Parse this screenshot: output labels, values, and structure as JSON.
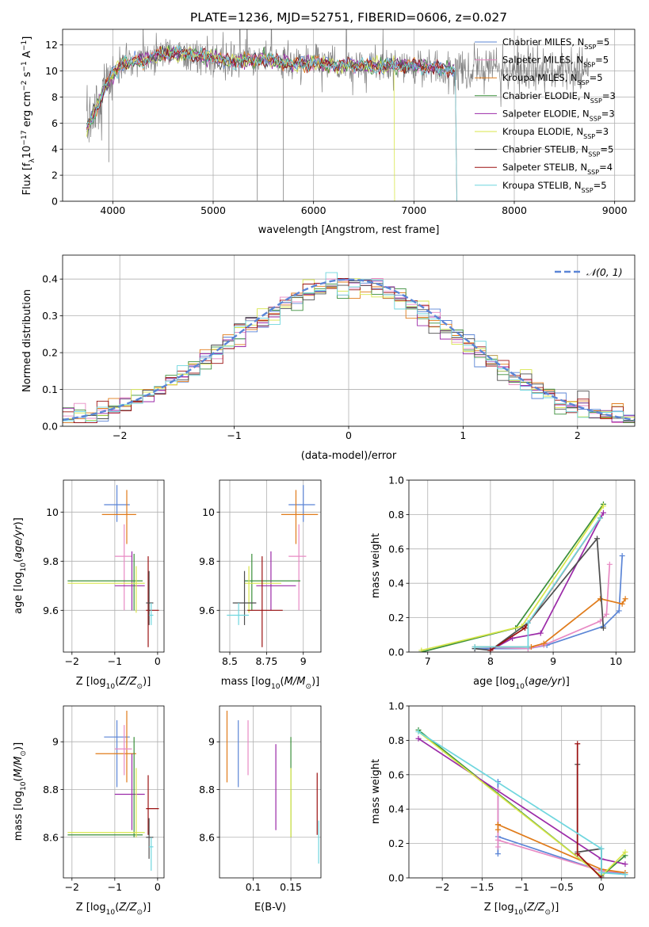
{
  "colors": {
    "chabrier_miles": "#5b85d6",
    "salpeter_miles": "#e88ac4",
    "kroupa_miles": "#e07b1a",
    "chabrier_elodie": "#3b8f3b",
    "salpeter_elodie": "#9b2aa8",
    "kroupa_elodie": "#d8e64a",
    "chabrier_stelib": "#4d4d4d",
    "salpeter_stelib": "#9b1111",
    "kroupa_stelib": "#6fd6de",
    "data": "#808080"
  },
  "chart_data": [
    {
      "id": "spectrum",
      "type": "line",
      "title": "PLATE=1236, MJD=52751, FIBERID=0606, z=0.027",
      "xlabel": "wavelength [Angstrom, rest frame]",
      "ylabel": "Flux [fλ10⁻¹⁷ erg cm⁻² s⁻¹ A⁻¹]",
      "xlim": [
        3500,
        9200
      ],
      "ylim": [
        0,
        13.2
      ],
      "xticks": [
        4000,
        5000,
        6000,
        7000,
        8000,
        9000
      ],
      "yticks": [
        0,
        2,
        4,
        6,
        8,
        10,
        12
      ],
      "legend": [
        "Chabrier MILES, N_SSP=5",
        "Salpeter MILES, N_SSP=5",
        "Kroupa MILES, N_SSP=5",
        "Chabrier ELODIE, N_SSP=3",
        "Salpeter ELODIE, N_SSP=3",
        "Kroupa ELODIE, N_SSP=3",
        "Chabrier STELIB, N_SSP=5",
        "Salpeter STELIB, N_SSP=4",
        "Kroupa STELIB, N_SSP=5"
      ],
      "legend_position": "upper right",
      "continuum": [
        [
          3740,
          5.5
        ],
        [
          3800,
          6.5
        ],
        [
          3900,
          8.3
        ],
        [
          3980,
          9.6
        ],
        [
          4100,
          10.6
        ],
        [
          4300,
          10.8
        ],
        [
          4500,
          11.3
        ],
        [
          4800,
          11.3
        ],
        [
          5000,
          11.0
        ],
        [
          5200,
          10.7
        ],
        [
          5500,
          10.9
        ],
        [
          5800,
          10.5
        ],
        [
          6000,
          10.6
        ],
        [
          6300,
          10.4
        ],
        [
          6600,
          10.4
        ],
        [
          7000,
          10.4
        ],
        [
          7300,
          10.2
        ],
        [
          7400,
          10.1
        ]
      ],
      "model_cutoffs": {
        "kroupa_elodie": 6800,
        "salpeter_stelib": 7420,
        "kroupa_stelib": 7420
      },
      "data_extent": [
        3740,
        8750
      ]
    },
    {
      "id": "residuals",
      "type": "histogram",
      "xlabel": "(data-model)/error",
      "ylabel": "Normed distribution",
      "xlim": [
        -2.5,
        2.5
      ],
      "ylim": [
        0,
        0.465
      ],
      "xticks": [
        -2,
        -1,
        0,
        1,
        2
      ],
      "yticks": [
        0.0,
        0.1,
        0.2,
        0.3,
        0.4
      ],
      "bin_width": 0.1,
      "reference_curve": "N(0,1)",
      "legend": [
        "𝒩(0, 1)"
      ],
      "legend_position": "upper right"
    },
    {
      "id": "age_vs_Z",
      "type": "errorbar",
      "xlabel": "Z [log10(Z/Z⊙)]",
      "ylabel": "age  [log10(age/yr)]",
      "xlim": [
        -2.2,
        0.15
      ],
      "ylim": [
        9.43,
        10.13
      ],
      "xticks": [
        -2,
        -1,
        0
      ],
      "yticks": [
        9.6,
        9.8,
        10.0
      ],
      "points": [
        {
          "m": "chabrier_miles",
          "x": -0.95,
          "xl": -1.25,
          "xh": -0.65,
          "y": 10.03,
          "yl": 9.96,
          "yh": 10.11
        },
        {
          "m": "kroupa_miles",
          "x": -0.72,
          "xl": -1.3,
          "xh": -0.5,
          "y": 9.99,
          "yl": 9.87,
          "yh": 10.09
        },
        {
          "m": "salpeter_miles",
          "x": -0.78,
          "xl": -1.0,
          "xh": -0.6,
          "y": 9.82,
          "yl": 9.6,
          "yh": 9.95
        },
        {
          "m": "salpeter_elodie",
          "x": -0.6,
          "xl": -1.0,
          "xh": -0.3,
          "y": 9.7,
          "yl": 9.6,
          "yh": 9.84
        },
        {
          "m": "chabrier_elodie",
          "x": -0.55,
          "xl": -2.1,
          "xh": -0.35,
          "y": 9.72,
          "yl": 9.6,
          "yh": 9.83
        },
        {
          "m": "kroupa_elodie",
          "x": -0.5,
          "xl": -2.1,
          "xh": -0.3,
          "y": 9.71,
          "yl": 9.59,
          "yh": 9.78
        },
        {
          "m": "salpeter_stelib",
          "x": -0.22,
          "xl": -0.27,
          "xh": 0.03,
          "y": 9.6,
          "yl": 9.45,
          "yh": 9.82
        },
        {
          "m": "chabrier_stelib",
          "x": -0.2,
          "xl": -0.27,
          "xh": -0.1,
          "y": 9.63,
          "yl": 9.54,
          "yh": 9.76
        },
        {
          "m": "kroupa_stelib",
          "x": -0.15,
          "xl": -0.2,
          "xh": -0.1,
          "y": 9.58,
          "yl": 9.54,
          "yh": 9.63
        }
      ]
    },
    {
      "id": "age_vs_mass",
      "type": "errorbar",
      "xlabel": "mass [log10(M/M⊙)]",
      "ylabel": "",
      "xlim": [
        8.43,
        9.12
      ],
      "ylim": [
        9.43,
        10.13
      ],
      "xticks": [
        8.5,
        8.75,
        9.0
      ],
      "yticks": [
        9.6,
        9.8,
        10.0
      ],
      "points": [
        {
          "m": "chabrier_miles",
          "x": 9.0,
          "xl": 8.9,
          "xh": 9.08,
          "y": 10.03,
          "yl": 9.96,
          "yh": 10.11
        },
        {
          "m": "kroupa_miles",
          "x": 8.95,
          "xl": 8.85,
          "xh": 9.1,
          "y": 9.99,
          "yl": 9.87,
          "yh": 10.09
        },
        {
          "m": "salpeter_miles",
          "x": 8.97,
          "xl": 8.9,
          "xh": 9.02,
          "y": 9.82,
          "yl": 9.6,
          "yh": 9.95
        },
        {
          "m": "salpeter_elodie",
          "x": 8.78,
          "xl": 8.68,
          "xh": 8.95,
          "y": 9.7,
          "yl": 9.6,
          "yh": 9.84
        },
        {
          "m": "chabrier_elodie",
          "x": 8.65,
          "xl": 8.6,
          "xh": 8.98,
          "y": 9.72,
          "yl": 9.6,
          "yh": 9.83
        },
        {
          "m": "kroupa_elodie",
          "x": 8.63,
          "xl": 8.6,
          "xh": 8.85,
          "y": 9.71,
          "yl": 9.59,
          "yh": 9.78
        },
        {
          "m": "salpeter_stelib",
          "x": 8.72,
          "xl": 8.62,
          "xh": 8.86,
          "y": 9.6,
          "yl": 9.45,
          "yh": 9.82
        },
        {
          "m": "chabrier_stelib",
          "x": 8.6,
          "xl": 8.52,
          "xh": 8.68,
          "y": 9.63,
          "yl": 9.54,
          "yh": 9.76
        },
        {
          "m": "kroupa_stelib",
          "x": 8.56,
          "xl": 8.48,
          "xh": 8.63,
          "y": 9.58,
          "yl": 9.54,
          "yh": 9.63
        }
      ]
    },
    {
      "id": "weight_vs_age",
      "type": "line",
      "xlabel": "age  [log10(age/yr)]",
      "ylabel": "mass weight",
      "xlim": [
        6.7,
        10.3
      ],
      "ylim": [
        0,
        1.0
      ],
      "xticks": [
        7,
        8,
        9,
        10
      ],
      "yticks": [
        0.0,
        0.2,
        0.4,
        0.6,
        0.8,
        1.0
      ],
      "series": [
        {
          "m": "chabrier_miles",
          "points": [
            [
              7.75,
              0.02
            ],
            [
              8.6,
              0.02
            ],
            [
              8.9,
              0.04
            ],
            [
              9.8,
              0.15
            ],
            [
              10.05,
              0.24
            ],
            [
              10.1,
              0.56
            ]
          ]
        },
        {
          "m": "salpeter_miles",
          "points": [
            [
              7.75,
              0.03
            ],
            [
              8.6,
              0.02
            ],
            [
              8.85,
              0.04
            ],
            [
              9.75,
              0.18
            ],
            [
              9.85,
              0.22
            ],
            [
              9.9,
              0.51
            ]
          ]
        },
        {
          "m": "kroupa_miles",
          "points": [
            [
              7.75,
              0.03
            ],
            [
              8.65,
              0.03
            ],
            [
              8.85,
              0.05
            ],
            [
              9.75,
              0.31
            ],
            [
              10.1,
              0.28
            ],
            [
              10.15,
              0.31
            ]
          ]
        },
        {
          "m": "chabrier_elodie",
          "points": [
            [
              6.9,
              0.0
            ],
            [
              8.4,
              0.14
            ],
            [
              9.8,
              0.86
            ]
          ]
        },
        {
          "m": "salpeter_elodie",
          "points": [
            [
              8.0,
              0.01
            ],
            [
              8.35,
              0.08
            ],
            [
              8.8,
              0.11
            ],
            [
              9.8,
              0.81
            ]
          ]
        },
        {
          "m": "kroupa_elodie",
          "points": [
            [
              6.9,
              0.01
            ],
            [
              8.5,
              0.15
            ],
            [
              9.8,
              0.85
            ]
          ]
        },
        {
          "m": "chabrier_stelib",
          "points": [
            [
              7.75,
              0.02
            ],
            [
              8.0,
              0.01
            ],
            [
              8.6,
              0.17
            ],
            [
              9.7,
              0.66
            ],
            [
              9.8,
              0.14
            ]
          ]
        },
        {
          "m": "salpeter_stelib",
          "points": [
            [
              8.0,
              0.01
            ],
            [
              8.55,
              0.14
            ],
            [
              9.75,
              0.78
            ]
          ]
        },
        {
          "m": "kroupa_stelib",
          "points": [
            [
              7.75,
              0.03
            ],
            [
              8.6,
              0.03
            ],
            [
              8.6,
              0.17
            ],
            [
              9.75,
              0.78
            ]
          ]
        }
      ]
    },
    {
      "id": "mass_vs_Z",
      "type": "errorbar",
      "xlabel": "Z [log10(Z/Z⊙)]",
      "ylabel": "mass [log10(M/M⊙)]",
      "xlim": [
        -2.2,
        0.15
      ],
      "ylim": [
        8.43,
        9.15
      ],
      "xticks": [
        -2,
        -1,
        0
      ],
      "yticks": [
        8.6,
        8.8,
        9.0
      ],
      "points": [
        {
          "m": "chabrier_miles",
          "x": -0.95,
          "xl": -1.25,
          "xh": -0.65,
          "y": 9.02,
          "yl": 8.81,
          "yh": 9.09
        },
        {
          "m": "kroupa_miles",
          "x": -0.72,
          "xl": -1.45,
          "xh": -0.5,
          "y": 8.95,
          "yl": 8.83,
          "yh": 9.13
        },
        {
          "m": "salpeter_miles",
          "x": -0.78,
          "xl": -1.0,
          "xh": -0.6,
          "y": 8.97,
          "yl": 8.86,
          "yh": 9.07
        },
        {
          "m": "salpeter_elodie",
          "x": -0.6,
          "xl": -1.0,
          "xh": -0.3,
          "y": 8.78,
          "yl": 8.63,
          "yh": 8.95
        },
        {
          "m": "chabrier_elodie",
          "x": -0.55,
          "xl": -2.1,
          "xh": -0.35,
          "y": 8.61,
          "yl": 8.6,
          "yh": 9.02
        },
        {
          "m": "kroupa_elodie",
          "x": -0.5,
          "xl": -2.1,
          "xh": -0.3,
          "y": 8.62,
          "yl": 8.6,
          "yh": 8.89
        },
        {
          "m": "salpeter_stelib",
          "x": -0.22,
          "xl": -0.27,
          "xh": 0.03,
          "y": 8.72,
          "yl": 8.61,
          "yh": 8.86
        },
        {
          "m": "chabrier_stelib",
          "x": -0.2,
          "xl": -0.27,
          "xh": -0.1,
          "y": 8.6,
          "yl": 8.51,
          "yh": 8.68
        },
        {
          "m": "kroupa_stelib",
          "x": -0.15,
          "xl": -0.2,
          "xh": -0.1,
          "y": 8.56,
          "yl": 8.46,
          "yh": 8.6
        }
      ]
    },
    {
      "id": "mass_vs_ebv",
      "type": "errorbar",
      "xlabel": "E(B-V)",
      "ylabel": "",
      "xlim": [
        0.055,
        0.19
      ],
      "ylim": [
        8.43,
        9.15
      ],
      "xticks": [
        0.1,
        0.15
      ],
      "yticks": [
        8.6,
        8.8,
        9.0
      ],
      "points": [
        {
          "m": "kroupa_miles",
          "x": 0.065,
          "y": 8.95,
          "yl": 8.83,
          "yh": 9.13
        },
        {
          "m": "chabrier_miles",
          "x": 0.08,
          "y": 9.02,
          "yl": 8.81,
          "yh": 9.09
        },
        {
          "m": "salpeter_miles",
          "x": 0.093,
          "y": 8.97,
          "yl": 8.86,
          "yh": 9.09
        },
        {
          "m": "salpeter_elodie",
          "x": 0.13,
          "y": 8.78,
          "yl": 8.63,
          "yh": 8.99
        },
        {
          "m": "chabrier_elodie",
          "x": 0.15,
          "y": 8.61,
          "yl": 8.6,
          "yh": 9.02
        },
        {
          "m": "kroupa_elodie",
          "x": 0.15,
          "y": 8.62,
          "yl": 8.6,
          "yh": 8.89
        },
        {
          "m": "salpeter_stelib",
          "x": 0.185,
          "y": 8.72,
          "yl": 8.61,
          "yh": 8.87
        },
        {
          "m": "kroupa_stelib",
          "x": 0.187,
          "y": 8.56,
          "yl": 8.49,
          "yh": 8.67
        }
      ]
    },
    {
      "id": "weight_vs_Z",
      "type": "line",
      "xlabel": "Z [log10(Z/Z⊙)]",
      "ylabel": "mass weight",
      "xlim": [
        -2.42,
        0.42
      ],
      "ylim": [
        0,
        1.0
      ],
      "xticks": [
        -2.0,
        -1.5,
        -1.0,
        -0.5,
        0.0
      ],
      "yticks": [
        0.0,
        0.2,
        0.4,
        0.6,
        0.8,
        1.0
      ],
      "series": [
        {
          "m": "chabrier_miles",
          "points": [
            [
              -1.3,
              0.56
            ],
            [
              -1.3,
              0.14
            ],
            [
              -1.3,
              0.24
            ],
            [
              0.0,
              0.04
            ],
            [
              0.3,
              0.02
            ]
          ]
        },
        {
          "m": "salpeter_miles",
          "points": [
            [
              -1.3,
              0.51
            ],
            [
              -1.3,
              0.18
            ],
            [
              -1.3,
              0.22
            ],
            [
              0.0,
              0.04
            ],
            [
              0.3,
              0.03
            ]
          ]
        },
        {
          "m": "kroupa_miles",
          "points": [
            [
              -1.3,
              0.31
            ],
            [
              -1.3,
              0.28
            ],
            [
              -1.3,
              0.31
            ],
            [
              0.0,
              0.05
            ],
            [
              0.3,
              0.03
            ]
          ]
        },
        {
          "m": "chabrier_elodie",
          "points": [
            [
              -2.3,
              0.86
            ],
            [
              0.0,
              0.01
            ],
            [
              0.3,
              0.13
            ]
          ]
        },
        {
          "m": "salpeter_elodie",
          "points": [
            [
              -2.3,
              0.81
            ],
            [
              0.0,
              0.11
            ],
            [
              0.3,
              0.08
            ]
          ]
        },
        {
          "m": "kroupa_elodie",
          "points": [
            [
              -2.3,
              0.85
            ],
            [
              0.0,
              0.01
            ],
            [
              0.3,
              0.15
            ]
          ]
        },
        {
          "m": "chabrier_stelib",
          "points": [
            [
              -0.3,
              0.66
            ],
            [
              -0.3,
              0.15
            ],
            [
              0.0,
              0.17
            ],
            [
              0.0,
              0.01
            ]
          ]
        },
        {
          "m": "salpeter_stelib",
          "points": [
            [
              -0.3,
              0.78
            ],
            [
              -0.3,
              0.14
            ],
            [
              0.0,
              0.0
            ]
          ]
        },
        {
          "m": "kroupa_stelib",
          "points": [
            [
              -2.3,
              0.85
            ],
            [
              0.0,
              0.17
            ],
            [
              0.0,
              0.03
            ],
            [
              0.3,
              0.02
            ]
          ]
        }
      ]
    }
  ]
}
